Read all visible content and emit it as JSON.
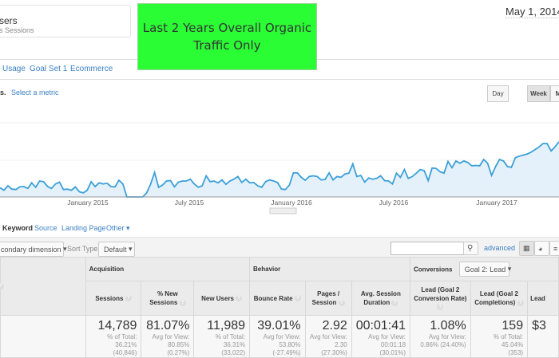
{
  "segment": {
    "title": "sers",
    "subtitle": "s Sessions"
  },
  "annotation": {
    "line1": "Last 2 Years Overall Organic",
    "line2": "Traffic Only",
    "color": "#2bfd35"
  },
  "date_range": "May 1, 2014 -",
  "report_tabs": [
    "Usage",
    "Goal Set 1",
    "Ecommerce"
  ],
  "metric": {
    "prefix": "s.",
    "select_label": "Select a metric"
  },
  "granularity": {
    "day": "Day",
    "week": "Week",
    "month": "M",
    "selected": "Week"
  },
  "chart_data": {
    "type": "area",
    "title": "",
    "xlabel": "",
    "ylabel": "",
    "ylim": [
      0,
      2
    ],
    "grid": true,
    "x_ticks": [
      "January 2015",
      "July 2015",
      "January 2016",
      "July 2016",
      "January 2017"
    ],
    "series": [
      {
        "name": "Sessions",
        "color": "#3a9fd8",
        "values": [
          0.25,
          0.18,
          0.3,
          0.21,
          0.2,
          0.27,
          0.28,
          0.23,
          0.38,
          0.26,
          0.43,
          0.41,
          0.28,
          0.23,
          0.35,
          0.4,
          0.2,
          0.21,
          0.18,
          0.27,
          0.14,
          0.11,
          0.18,
          0.41,
          0.28,
          0.38,
          0.35,
          0.37,
          0.28,
          0.27,
          0.45,
          0.35,
          0,
          0,
          0,
          0,
          0,
          0.11,
          0.35,
          0.66,
          0.26,
          0.32,
          0.43,
          0.44,
          0.27,
          0.4,
          0.43,
          0.43,
          0.48,
          0.35,
          0.26,
          0.3,
          0.57,
          0.41,
          0.43,
          0.38,
          0.46,
          0.34,
          0.43,
          0.48,
          0.55,
          0.39,
          0.48,
          0.38,
          0.39,
          0.3,
          0.26,
          0.41,
          0.46,
          0.43,
          0.39,
          0.21,
          0.2,
          0.32,
          0.65,
          0.65,
          0.53,
          0.45,
          0.55,
          0.57,
          0.55,
          0.46,
          0.47,
          0.65,
          0.46,
          0.55,
          0.53,
          0.62,
          0.64,
          0.89,
          0.55,
          0.58,
          0.4,
          0.51,
          0.48,
          0.5,
          0.57,
          0.44,
          0.43,
          0.35,
          0.64,
          0.53,
          0.74,
          0.5,
          0.55,
          0.64,
          0.74,
          0.71,
          0.44,
          0.78,
          0.77,
          0.68,
          0.64,
          0.96,
          0.79,
          0.97,
          0.91,
          0.97,
          0.93,
          0.84,
          0.85,
          0.84,
          1.01,
          0.91,
          0.58,
          0.82,
          1.01,
          0.97,
          0.82,
          0.8,
          1.06,
          1.1,
          1.13,
          1.16,
          1.21,
          1.28,
          1.35,
          1.44,
          1.44,
          1.24,
          1.35,
          1.49
        ]
      }
    ]
  },
  "dimension_tabs": {
    "selected": "Keyword",
    "others": [
      "Source",
      "Landing Page",
      "Other"
    ]
  },
  "toolbar": {
    "secondary_dimension": "condary dimension",
    "sort_type_label": "Sort Type:",
    "sort_type_value": "Default",
    "search_placeholder": "",
    "advanced": "advanced"
  },
  "table": {
    "groups": {
      "acquisition": "Acquisition",
      "behavior": "Behavior",
      "conversions": "Conversions",
      "goal_select": "Goal 2: Lead"
    },
    "columns": [
      "Sessions",
      "% New Sessions",
      "New Users",
      "Bounce Rate",
      "Pages / Session",
      "Avg. Session Duration",
      "Lead (Goal 2 Conversion Rate)",
      "Lead (Goal 2 Completions)",
      "Lead"
    ],
    "totals": [
      {
        "value": "14,789",
        "l1": "% of Total:",
        "l2": "36.21% (40,846)"
      },
      {
        "value": "81.07%",
        "l1": "Avg for View:",
        "l2": "80.85% (0.27%)"
      },
      {
        "value": "11,989",
        "l1": "% of Total:",
        "l2": "36.31% (33,022)"
      },
      {
        "value": "39.01%",
        "l1": "Avg for View:",
        "l2": "53.80% (-27.49%)"
      },
      {
        "value": "2.92",
        "l1": "Avg for View:",
        "l2": "2.30 (27.30%)"
      },
      {
        "value": "00:01:41",
        "l1": "Avg for View:",
        "l2": "00:01:18 (30.01%)"
      },
      {
        "value": "1.08%",
        "l1": "Avg for View:",
        "l2": "0.86% (24.40%)"
      },
      {
        "value": "159",
        "l1": "% of Total: 45.04%",
        "l2": "(353)"
      },
      {
        "value": "$3",
        "l1": "",
        "l2": ""
      }
    ]
  }
}
